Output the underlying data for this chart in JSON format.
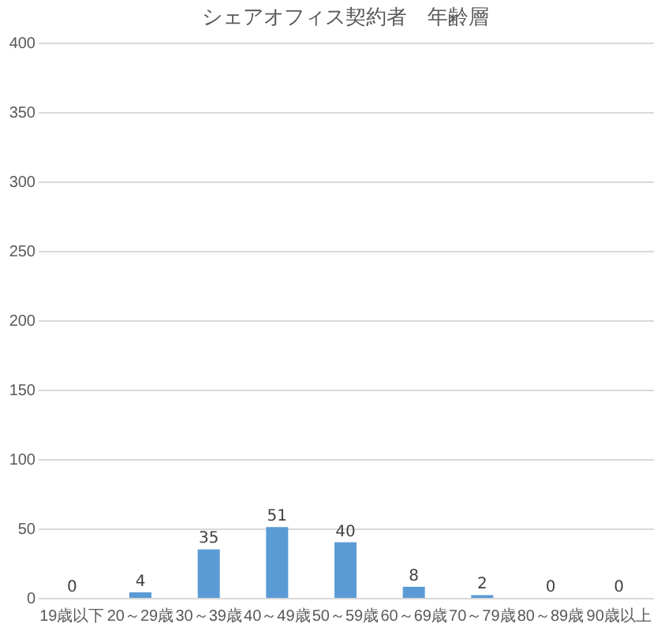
{
  "chart_data": {
    "type": "bar",
    "title": "シェアオフィス契約者　年齢層",
    "categories": [
      "19歳以下",
      "20～29歳",
      "30～39歳",
      "40～49歳",
      "50～59歳",
      "60～69歳",
      "70～79歳",
      "80～89歳",
      "90歳以上"
    ],
    "values": [
      0,
      4,
      35,
      51,
      40,
      8,
      2,
      0,
      0
    ],
    "color": "#5b9bd5",
    "data_labels": true,
    "ylim": [
      0,
      400
    ],
    "yticks": [
      0,
      50,
      100,
      150,
      200,
      250,
      300,
      350,
      400
    ],
    "grid": "y"
  }
}
